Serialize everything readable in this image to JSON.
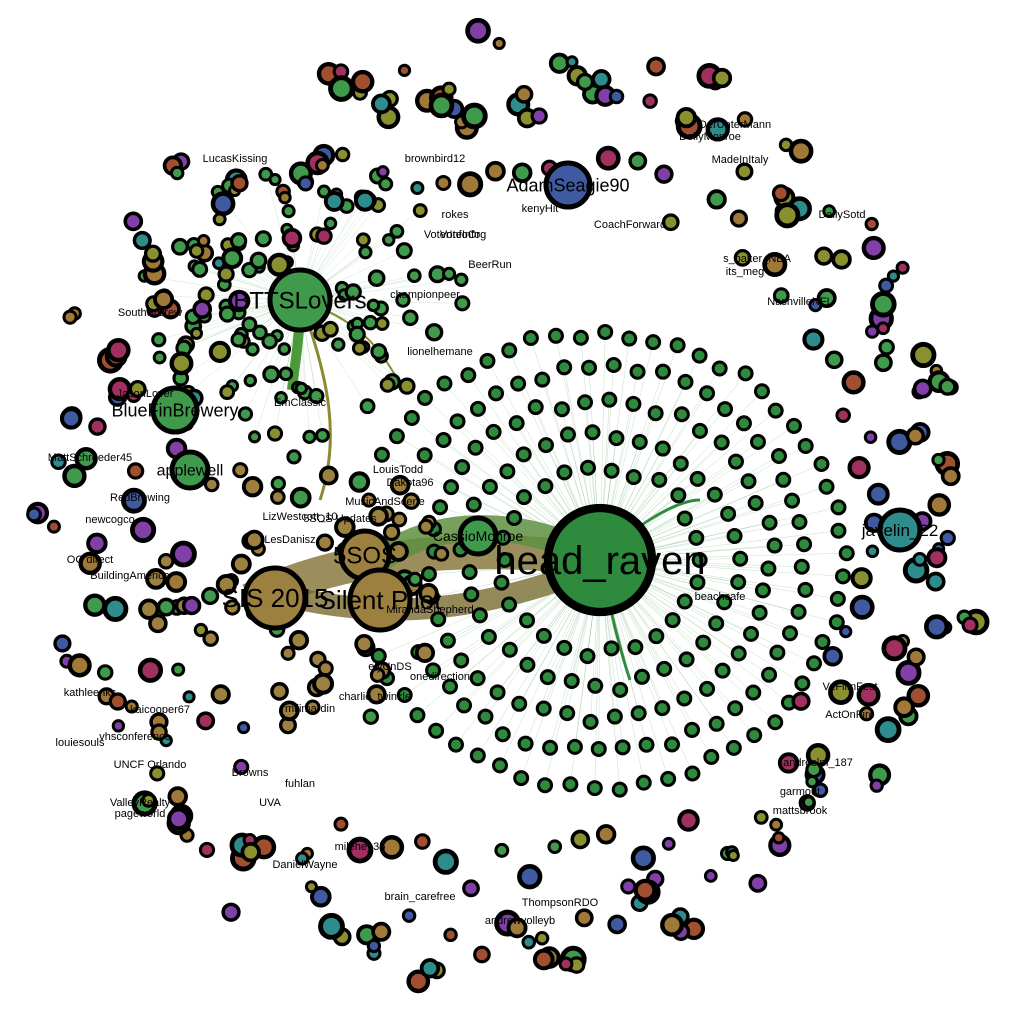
{
  "colors": {
    "background": "#ffffff",
    "node_border": "#000000",
    "green": "#3f9a4c",
    "green_dark": "#2e8a3c",
    "gold": "#9c8040",
    "edge_gold": "#8a7030",
    "edge_green": "#5aa66a",
    "teal": "#2f8c8c",
    "blue": "#3f5aa0",
    "purple": "#8040a8",
    "rust": "#a05030",
    "olive": "#8a9030",
    "rose": "#a03060",
    "tan": "#a07838"
  },
  "hubs": [
    {
      "id": "head_raven",
      "label": "head_raven",
      "color": "green_dark"
    },
    {
      "id": "bttslovers",
      "label": "BTTSLovers",
      "color": "green"
    },
    {
      "id": "5sos",
      "label": "5SOS",
      "color": "gold"
    },
    {
      "id": "silent_pilot",
      "label": "Silent Pilot",
      "color": "gold"
    },
    {
      "id": "sis2015",
      "label": "SIS 2015",
      "color": "gold"
    },
    {
      "id": "cassiomonroe",
      "label": "CassioMonroe",
      "color": "green"
    },
    {
      "id": "javelin",
      "label": "javelin_22",
      "color": "teal"
    },
    {
      "id": "bluebrew",
      "label": "BlueFinBrewery",
      "color": "green"
    },
    {
      "id": "applewell",
      "label": "applewell",
      "color": "green"
    },
    {
      "id": "adamseagie",
      "label": "AdamSeagie90",
      "color": "blue"
    }
  ],
  "labels": [
    {
      "id": "l-dailysotyd",
      "text": "DailySotd"
    },
    {
      "id": "l-beerrun",
      "text": "BeerRun"
    },
    {
      "id": "l-voteinfo",
      "text": "VoteInfo"
    },
    {
      "id": "l-southstbrew",
      "text": "SouthStBrew"
    },
    {
      "id": "l-jasonlover",
      "text": "JasonLover"
    },
    {
      "id": "l-mattschroeder45",
      "text": "MattSchroeder45"
    },
    {
      "id": "l-louistodd",
      "text": "LouisTodd"
    },
    {
      "id": "l-dakota96",
      "text": "Dakota96"
    },
    {
      "id": "l-musicandscene",
      "text": "MusicAndScene"
    },
    {
      "id": "l-lizwestcott",
      "text": "LizWestcott_10"
    },
    {
      "id": "l-5sosupdates",
      "text": "5SOS Updates"
    },
    {
      "id": "l-lesdanisz",
      "text": "LesDanisz"
    },
    {
      "id": "l-mirandashepherd",
      "text": "MirandaShepherd"
    },
    {
      "id": "l-onedirection",
      "text": "onedirection"
    },
    {
      "id": "l-elyunds",
      "text": "elyUnDS"
    },
    {
      "id": "l-charlie",
      "text": "charlie_twinkle"
    },
    {
      "id": "l-milimardin",
      "text": "milimardin"
    },
    {
      "id": "l-lionelhemane",
      "text": "lionelhemane"
    },
    {
      "id": "l-champion",
      "text": "championpeer"
    },
    {
      "id": "l-emclassic",
      "text": "EmClassic"
    },
    {
      "id": "l-nashville",
      "text": "NashvilleNFL"
    },
    {
      "id": "l-sbaker",
      "text": "s_baker_NBA"
    },
    {
      "id": "l-itsmeg",
      "text": "its_meg"
    },
    {
      "id": "l-madeinitaly",
      "text": "MadeInItaly"
    },
    {
      "id": "l-doll",
      "text": "DollyMonroe"
    },
    {
      "id": "l-coach",
      "text": "CoachForward"
    },
    {
      "id": "l-kenyh",
      "text": "kenyHit"
    },
    {
      "id": "l-brownbird",
      "text": "brownbird12"
    },
    {
      "id": "l-rokes",
      "text": "rokes"
    },
    {
      "id": "l-actonfire",
      "text": "ActOnFire"
    },
    {
      "id": "l-andreslm",
      "text": "andreslm_187"
    },
    {
      "id": "l-vzfilmfest",
      "text": "VzFilmFest"
    },
    {
      "id": "l-garmout",
      "text": "garmout"
    },
    {
      "id": "l-matt",
      "text": "mattsbrook"
    },
    {
      "id": "l-unc",
      "text": "UNCF Orlando"
    },
    {
      "id": "l-valley",
      "text": "ValleyRealty"
    },
    {
      "id": "l-pageworld",
      "text": "pageworld"
    },
    {
      "id": "l-browns",
      "text": "Browns"
    },
    {
      "id": "l-fuhlan",
      "text": "fuhlan"
    },
    {
      "id": "l-uva",
      "text": "UVA"
    },
    {
      "id": "l-kaicooper",
      "text": "kaicooper67"
    },
    {
      "id": "l-vhs",
      "text": "vhsconference"
    },
    {
      "id": "l-louiesouls",
      "text": "louiesouls"
    },
    {
      "id": "l-kfj",
      "text": "kathleenks"
    },
    {
      "id": "l-buildingam",
      "text": "BuildingAmerica"
    },
    {
      "id": "l-direct",
      "text": "OC direct"
    },
    {
      "id": "l-redbrewing",
      "text": "RedBrewing"
    },
    {
      "id": "l-newcogco",
      "text": "newcogco"
    },
    {
      "id": "l-voterinfo",
      "text": "VoterInfoOrg"
    },
    {
      "id": "l-andr",
      "text": "andrewvolleyb"
    },
    {
      "id": "l-thomp",
      "text": "ThompsonRDO"
    },
    {
      "id": "l-dani",
      "text": "DanielWayne"
    },
    {
      "id": "l-milehe",
      "text": "milehe_35"
    },
    {
      "id": "l-brain",
      "text": "brain_carefree"
    },
    {
      "id": "l-lucas",
      "text": "LucasKissing"
    },
    {
      "id": "l-dermann",
      "text": "DerUnterMann"
    },
    {
      "id": "l-beachcafe",
      "text": "beachcafe"
    }
  ]
}
